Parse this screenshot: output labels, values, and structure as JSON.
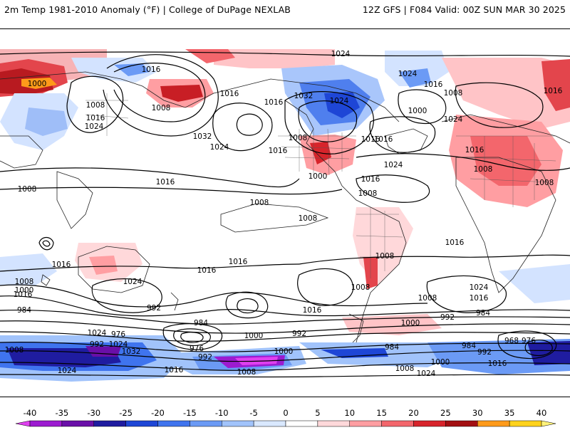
{
  "header": {
    "left": "2m Temp 1981-2010 Anomaly (°F) | College of DuPage NEXLAB",
    "right": "12Z GFS | F084 Valid: 00Z SUN MAR 30 2025"
  },
  "colorbar": {
    "ticks": [
      "-40",
      "-35",
      "-30",
      "-25",
      "-20",
      "-15",
      "-10",
      "-5",
      "0",
      "5",
      "10",
      "15",
      "20",
      "25",
      "30",
      "35",
      "40"
    ],
    "colors": [
      "#e040f0",
      "#9c1bd0",
      "#6a0fa8",
      "#1f1ca0",
      "#1e46d6",
      "#3f74ee",
      "#6b9af5",
      "#a1c3fb",
      "#d9e8ff",
      "#ffffff",
      "#ffd8da",
      "#ff9ea2",
      "#f3666c",
      "#d7242b",
      "#a30f12",
      "#ff9a1a",
      "#ffd21c",
      "#fff27a"
    ]
  },
  "map": {
    "isobar_labels": [
      {
        "text": "1024",
        "region": "arctic-north"
      },
      {
        "text": "1016",
        "region": "siberia"
      },
      {
        "text": "1000",
        "region": "west-siberia"
      },
      {
        "text": "1016",
        "region": "alaska"
      },
      {
        "text": "1008",
        "region": "east-asia"
      },
      {
        "text": "1016",
        "region": "mongolia"
      },
      {
        "text": "1024",
        "region": "china"
      },
      {
        "text": "1032",
        "region": "north-pacific"
      },
      {
        "text": "1024",
        "region": "north-pacific-east"
      },
      {
        "text": "1016",
        "region": "west-coast-na"
      },
      {
        "text": "1016",
        "region": "hawaii"
      },
      {
        "text": "1008",
        "region": "nw-pacific"
      },
      {
        "text": "1032",
        "region": "canada"
      },
      {
        "text": "1024",
        "region": "great-lakes"
      },
      {
        "text": "1016",
        "region": "pacific-nw-us"
      },
      {
        "text": "1008",
        "region": "us-south"
      },
      {
        "text": "1016",
        "region": "us-east"
      },
      {
        "text": "1016",
        "region": "atlantic-west"
      },
      {
        "text": "1024",
        "region": "atlantic-central"
      },
      {
        "text": "1000",
        "region": "gulf"
      },
      {
        "text": "1016",
        "region": "caribbean"
      },
      {
        "text": "1008",
        "region": "amazon"
      },
      {
        "text": "1024",
        "region": "greenland"
      },
      {
        "text": "1016",
        "region": "iceland"
      },
      {
        "text": "1008",
        "region": "north-atlantic"
      },
      {
        "text": "1000",
        "region": "mid-atlantic"
      },
      {
        "text": "1024",
        "region": "europe-west"
      },
      {
        "text": "1016",
        "region": "sahara-west"
      },
      {
        "text": "1008",
        "region": "sahara"
      },
      {
        "text": "1008",
        "region": "arabia"
      },
      {
        "text": "1016",
        "region": "russia-east"
      },
      {
        "text": "1008",
        "region": "central-pacific"
      },
      {
        "text": "1008",
        "region": "east-pacific"
      },
      {
        "text": "1008",
        "region": "bolivia"
      },
      {
        "text": "1016",
        "region": "south-atlantic-north"
      },
      {
        "text": "1024",
        "region": "south-atlantic"
      },
      {
        "text": "1016",
        "region": "south-atlantic-east"
      },
      {
        "text": "1008",
        "region": "south-atlantic-south"
      },
      {
        "text": "1008",
        "region": "argentina"
      },
      {
        "text": "1016",
        "region": "australia-north"
      },
      {
        "text": "1024",
        "region": "tasman"
      },
      {
        "text": "1016",
        "region": "south-pacific-west"
      },
      {
        "text": "1016",
        "region": "south-pacific-central"
      },
      {
        "text": "1016",
        "region": "south-pacific-east"
      },
      {
        "text": "1008",
        "region": "southern-ocean-w1"
      },
      {
        "text": "1000",
        "region": "southern-ocean-w2"
      },
      {
        "text": "984",
        "region": "southern-ocean-w3"
      },
      {
        "text": "976",
        "region": "southern-ocean-w4"
      },
      {
        "text": "992",
        "region": "southern-ocean-w5"
      },
      {
        "text": "1024",
        "region": "southern-ocean-w6"
      },
      {
        "text": "1032",
        "region": "antarctic-w"
      },
      {
        "text": "1008",
        "region": "antarctic-far-w"
      },
      {
        "text": "1024",
        "region": "antarctic-sw"
      },
      {
        "text": "1016",
        "region": "antarctic-s"
      },
      {
        "text": "992",
        "region": "southern-ocean-c1"
      },
      {
        "text": "984",
        "region": "southern-ocean-c2"
      },
      {
        "text": "976",
        "region": "southern-ocean-c3"
      },
      {
        "text": "992",
        "region": "southern-ocean-c4"
      },
      {
        "text": "1000",
        "region": "southern-ocean-c5"
      },
      {
        "text": "992",
        "region": "southern-ocean-c6"
      },
      {
        "text": "1000",
        "region": "southern-ocean-c7"
      },
      {
        "text": "1008",
        "region": "antarctic-c"
      },
      {
        "text": "1000",
        "region": "southern-ocean-e1"
      },
      {
        "text": "992",
        "region": "southern-ocean-e2"
      },
      {
        "text": "984",
        "region": "southern-ocean-e3"
      },
      {
        "text": "984",
        "region": "southern-ocean-e4"
      },
      {
        "text": "968",
        "region": "southern-ocean-e5"
      },
      {
        "text": "976",
        "region": "southern-ocean-e6"
      },
      {
        "text": "992",
        "region": "southern-ocean-e7"
      },
      {
        "text": "984",
        "region": "southern-ocean-e8"
      },
      {
        "text": "1008",
        "region": "antarctic-e1"
      },
      {
        "text": "1000",
        "region": "antarctic-e2"
      },
      {
        "text": "1016",
        "region": "antarctic-e3"
      },
      {
        "text": "1024",
        "region": "antarctic-e4"
      },
      {
        "text": "1008",
        "region": "indian-ocean"
      },
      {
        "text": "1024",
        "region": "indian-ocean-s"
      },
      {
        "text": "1016",
        "region": "indian-ocean-e"
      }
    ]
  }
}
